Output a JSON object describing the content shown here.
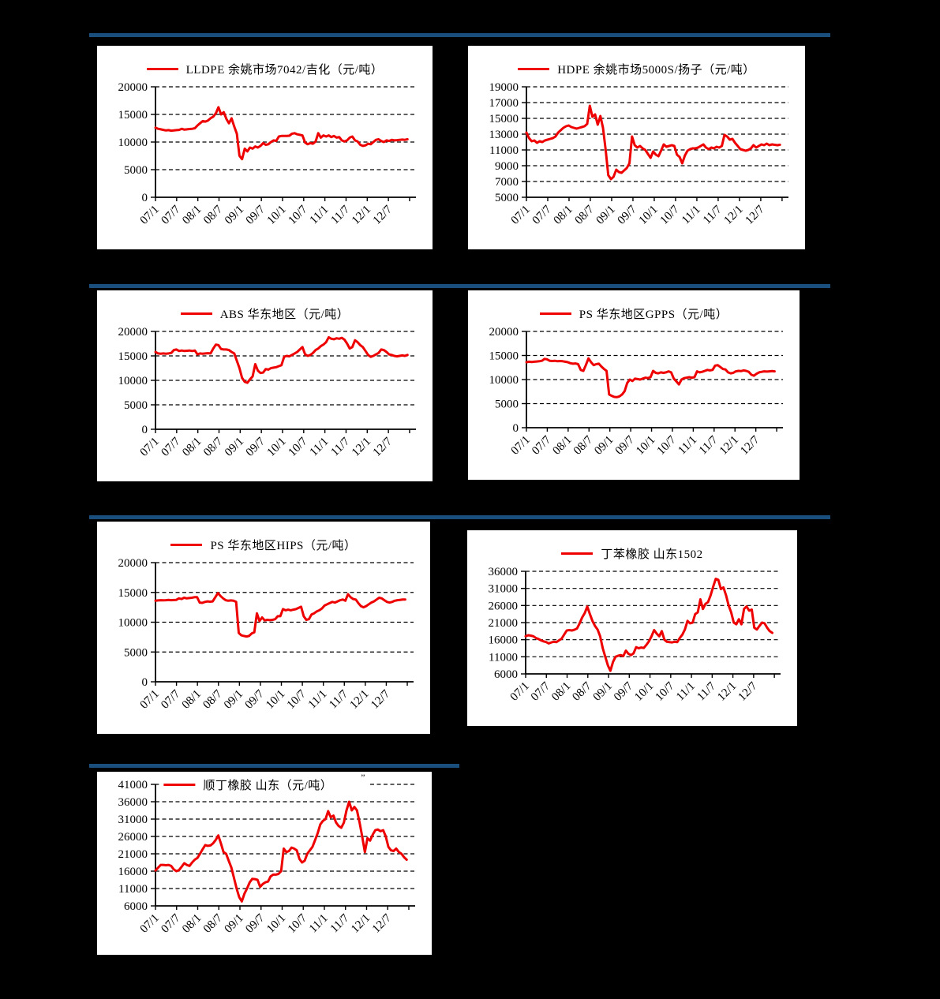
{
  "page": {
    "background": "#000000",
    "accent_bar_color": "#1A4E7C",
    "divider_bars": 4
  },
  "chart_data": [
    {
      "type": "line",
      "title": "LLDPE 余姚市场7042/吉化（元/吨）",
      "series_color": "#EE0000",
      "y_min": 0,
      "y_max": 20000,
      "y_ticks": [
        0,
        5000,
        10000,
        15000,
        20000
      ],
      "x_labels": [
        "07/1",
        "07/7",
        "08/1",
        "08/7",
        "09/1",
        "09/7",
        "10/1",
        "10/7",
        "11/1",
        "11/7",
        "12/1",
        "12/7"
      ],
      "grid": "dashed-horizontal",
      "legend_position": "top-center",
      "values": [
        12600,
        12400,
        12300,
        12200,
        12100,
        12150,
        12050,
        12100,
        12150,
        12200,
        12400,
        12250,
        12300,
        12350,
        12400,
        12500,
        13000,
        13400,
        13800,
        13700,
        13900,
        14300,
        14600,
        15200,
        16300,
        15000,
        15400,
        14200,
        13400,
        14300,
        12800,
        11500,
        7500,
        6900,
        8800,
        8300,
        9000,
        8800,
        9200,
        9000,
        9300,
        9800,
        9500,
        9600,
        10000,
        10300,
        10200,
        11000,
        11100,
        11100,
        11100,
        11150,
        11500,
        11600,
        11400,
        11300,
        11200,
        9900,
        9600,
        9800,
        9700,
        10100,
        11600,
        10800,
        11200,
        11000,
        11200,
        10900,
        11100,
        10800,
        10900,
        10300,
        10100,
        10300,
        10800,
        11000,
        10300,
        10100,
        9500,
        9300,
        9400,
        9700,
        9600,
        10000,
        10400,
        10500,
        10200,
        10000,
        10300,
        10200,
        10400,
        10300,
        10350,
        10400,
        10450,
        10400,
        10500
      ]
    },
    {
      "type": "line",
      "title": "HDPE 余姚市场5000S/扬子（元/吨）",
      "series_color": "#EE0000",
      "y_min": 5000,
      "y_max": 19000,
      "y_ticks": [
        5000,
        7000,
        9000,
        11000,
        13000,
        15000,
        17000,
        19000
      ],
      "x_labels": [
        "07/1",
        "07/7",
        "08/1",
        "08/7",
        "09/1",
        "09/7",
        "10/1",
        "10/7",
        "11/1",
        "11/7",
        "12/1",
        "12/7"
      ],
      "grid": "dashed-horizontal",
      "legend_position": "top-center",
      "values": [
        13200,
        12500,
        12100,
        12200,
        11900,
        12100,
        12000,
        12200,
        12300,
        12400,
        12500,
        12700,
        13200,
        13500,
        13800,
        14000,
        14100,
        13900,
        13800,
        13700,
        13800,
        13900,
        14000,
        14300,
        16600,
        15200,
        15500,
        14200,
        15300,
        13800,
        11000,
        7800,
        7300,
        7600,
        8500,
        8200,
        8100,
        8400,
        8700,
        9300,
        12700,
        11600,
        11300,
        11500,
        11200,
        11000,
        10500,
        10000,
        10800,
        10400,
        10200,
        10900,
        11700,
        11400,
        11500,
        11600,
        11500,
        10400,
        10100,
        9300,
        10300,
        10900,
        11100,
        11200,
        11200,
        11300,
        11500,
        11700,
        11300,
        11100,
        11300,
        11200,
        11400,
        11300,
        11500,
        12900,
        12700,
        12300,
        12400,
        11900,
        11500,
        11100,
        11000,
        10900,
        11000,
        11200,
        11600,
        11300,
        11500,
        11700,
        11600,
        11800,
        11600,
        11700,
        11650,
        11600,
        11650
      ]
    },
    {
      "type": "line",
      "title": "ABS 华东地区（元/吨）",
      "series_color": "#EE0000",
      "y_min": 0,
      "y_max": 20000,
      "y_ticks": [
        0,
        5000,
        10000,
        15000,
        20000
      ],
      "x_labels": [
        "07/1",
        "07/7",
        "08/1",
        "08/7",
        "09/1",
        "09/7",
        "10/1",
        "10/7",
        "11/1",
        "11/7",
        "12/1",
        "12/7"
      ],
      "grid": "dashed-horizontal",
      "legend_position": "top-center",
      "values": [
        15800,
        15500,
        15450,
        15500,
        15450,
        15500,
        15600,
        16200,
        16300,
        16000,
        16100,
        16000,
        16050,
        16100,
        16000,
        16100,
        15300,
        15500,
        15450,
        15500,
        15550,
        15500,
        16500,
        17300,
        17200,
        16400,
        16300,
        16300,
        16200,
        15800,
        15500,
        14000,
        12500,
        10500,
        9700,
        9500,
        10200,
        10800,
        13300,
        12000,
        11500,
        11600,
        12300,
        12200,
        12500,
        12600,
        12700,
        12900,
        13100,
        14800,
        15000,
        14900,
        15200,
        15500,
        15800,
        16300,
        16800,
        15300,
        15000,
        15200,
        15600,
        16200,
        16500,
        17000,
        17300,
        17800,
        18800,
        18500,
        18400,
        18600,
        18500,
        18700,
        18300,
        17500,
        16500,
        16800,
        18200,
        17800,
        17200,
        16800,
        16000,
        15200,
        14800,
        15000,
        15300,
        15600,
        16300,
        16200,
        15800,
        15300,
        15200,
        15000,
        14900,
        15000,
        15100,
        15000,
        15200
      ]
    },
    {
      "type": "line",
      "title": "PS 华东地区GPPS（元/吨）",
      "series_color": "#EE0000",
      "y_min": 0,
      "y_max": 20000,
      "y_ticks": [
        0,
        5000,
        10000,
        15000,
        20000
      ],
      "x_labels": [
        "07/1",
        "07/7",
        "08/1",
        "08/7",
        "09/1",
        "09/7",
        "10/1",
        "10/7",
        "11/1",
        "11/7",
        "12/1",
        "12/7"
      ],
      "grid": "dashed-horizontal",
      "legend_position": "top-center",
      "values": [
        13600,
        13700,
        13650,
        13700,
        13750,
        13800,
        13900,
        14300,
        14200,
        13900,
        13850,
        13900,
        13800,
        13850,
        13800,
        13700,
        13600,
        13400,
        13300,
        13350,
        13200,
        12000,
        11800,
        13000,
        14400,
        13600,
        13000,
        13200,
        13300,
        12700,
        12200,
        11800,
        6900,
        6600,
        6400,
        6350,
        6500,
        6900,
        7600,
        9300,
        10000,
        9700,
        10200,
        10100,
        10000,
        10200,
        10400,
        10300,
        10500,
        11800,
        11400,
        11300,
        11500,
        11400,
        11500,
        11700,
        11500,
        10200,
        9600,
        9000,
        10000,
        10300,
        10400,
        10500,
        10400,
        10500,
        11700,
        11500,
        11600,
        11800,
        12000,
        11900,
        12000,
        12900,
        13000,
        12600,
        12200,
        12100,
        11500,
        11300,
        11400,
        11700,
        11800,
        11750,
        11900,
        11800,
        11600,
        11000,
        10800,
        11200,
        11500,
        11600,
        11700,
        11650,
        11700,
        11750,
        11700
      ]
    },
    {
      "type": "line",
      "title": "PS 华东地区HIPS（元/吨）",
      "series_color": "#EE0000",
      "y_min": 0,
      "y_max": 20000,
      "y_ticks": [
        0,
        5000,
        10000,
        15000,
        20000
      ],
      "x_labels": [
        "07/1",
        "07/7",
        "08/1",
        "08/7",
        "09/1",
        "09/7",
        "10/1",
        "10/7",
        "11/1",
        "11/7",
        "12/1",
        "12/7"
      ],
      "grid": "dashed-horizontal",
      "legend_position": "top-center",
      "values": [
        13600,
        13650,
        13700,
        13680,
        13700,
        13750,
        13700,
        13720,
        13750,
        14000,
        13900,
        14100,
        14000,
        14050,
        14100,
        14200,
        14200,
        13300,
        13250,
        13400,
        13500,
        13450,
        13500,
        14200,
        14900,
        14400,
        14000,
        13700,
        13600,
        13650,
        13600,
        13400,
        8200,
        7800,
        7700,
        7600,
        7700,
        8100,
        8300,
        11500,
        10200,
        10800,
        10300,
        10400,
        10350,
        10400,
        10500,
        11000,
        11000,
        12200,
        12000,
        12100,
        12000,
        12100,
        12200,
        12400,
        12600,
        11000,
        10400,
        10500,
        11300,
        11500,
        11800,
        12000,
        12300,
        12800,
        13000,
        13200,
        13400,
        13300,
        13500,
        13700,
        13800,
        13600,
        14700,
        14200,
        13900,
        13800,
        13200,
        12700,
        12500,
        12700,
        13000,
        13300,
        13500,
        13800,
        14100,
        14000,
        13700,
        13400,
        13300,
        13400,
        13600,
        13700,
        13750,
        13800,
        13800
      ]
    },
    {
      "type": "line",
      "title": "丁苯橡胶 山东1502",
      "series_color": "#EE0000",
      "y_min": 6000,
      "y_max": 36000,
      "y_ticks": [
        6000,
        11000,
        16000,
        21000,
        26000,
        31000,
        36000
      ],
      "x_labels": [
        "07/1",
        "07/7",
        "08/1",
        "08/7",
        "09/1",
        "09/7",
        "10/1",
        "10/7",
        "11/1",
        "11/7",
        "12/1",
        "12/7"
      ],
      "grid": "dashed-horizontal",
      "legend_position": "top-center",
      "values": [
        17000,
        17300,
        17200,
        17000,
        16500,
        16200,
        15800,
        15500,
        15300,
        14900,
        15200,
        15400,
        15300,
        15800,
        16300,
        17500,
        18700,
        18800,
        18700,
        18900,
        19300,
        20800,
        22500,
        23800,
        25700,
        23500,
        21500,
        20000,
        19000,
        17000,
        13500,
        11000,
        8500,
        6900,
        9500,
        11000,
        11300,
        11500,
        11200,
        12800,
        11900,
        11500,
        12000,
        13800,
        13500,
        13700,
        13600,
        14500,
        15500,
        17000,
        18800,
        17800,
        17000,
        18500,
        16000,
        15400,
        15300,
        15200,
        15400,
        15300,
        16500,
        17500,
        19000,
        21500,
        20800,
        21000,
        23500,
        24000,
        27800,
        25000,
        26500,
        27000,
        29000,
        31500,
        33800,
        33500,
        30800,
        31300,
        29000,
        26000,
        24000,
        21000,
        20500,
        22000,
        20500,
        25000,
        25700,
        24500,
        24800,
        19500,
        19000,
        20000,
        21000,
        20800,
        19500,
        18500,
        18000
      ]
    },
    {
      "type": "line",
      "title": "顺丁橡胶 山东（元/吨）",
      "legend_artifact": "”",
      "series_color": "#EE0000",
      "y_min": 6000,
      "y_max": 41000,
      "y_ticks": [
        6000,
        11000,
        16000,
        21000,
        26000,
        31000,
        36000,
        41000
      ],
      "x_labels": [
        "07/1",
        "07/7",
        "08/1",
        "08/7",
        "09/1",
        "09/7",
        "10/1",
        "10/7",
        "11/1",
        "11/7",
        "12/1",
        "12/7"
      ],
      "grid": "dashed-horizontal",
      "legend_position": "top-center-overlay",
      "values": [
        16200,
        17000,
        17800,
        17800,
        17700,
        17800,
        17500,
        16500,
        16000,
        16300,
        17300,
        18300,
        17800,
        17500,
        18500,
        19300,
        19800,
        21000,
        22300,
        23500,
        23300,
        23400,
        24000,
        25000,
        26300,
        24000,
        21500,
        21000,
        19000,
        17000,
        14000,
        11000,
        8500,
        7300,
        9500,
        11000,
        12800,
        13800,
        13700,
        13500,
        11500,
        12300,
        12800,
        13000,
        14500,
        15000,
        15000,
        15200,
        16000,
        22500,
        21500,
        21800,
        22800,
        22500,
        22000,
        19500,
        18500,
        19000,
        21000,
        22000,
        23000,
        25000,
        27000,
        29500,
        30500,
        31000,
        33300,
        31500,
        32000,
        30000,
        29000,
        28500,
        30000,
        33500,
        36000,
        33500,
        34500,
        33500,
        30000,
        26000,
        21500,
        25500,
        24800,
        26500,
        27800,
        28000,
        27500,
        27800,
        26000,
        23000,
        22000,
        21800,
        22500,
        21500,
        21000,
        20000,
        19300
      ]
    }
  ]
}
